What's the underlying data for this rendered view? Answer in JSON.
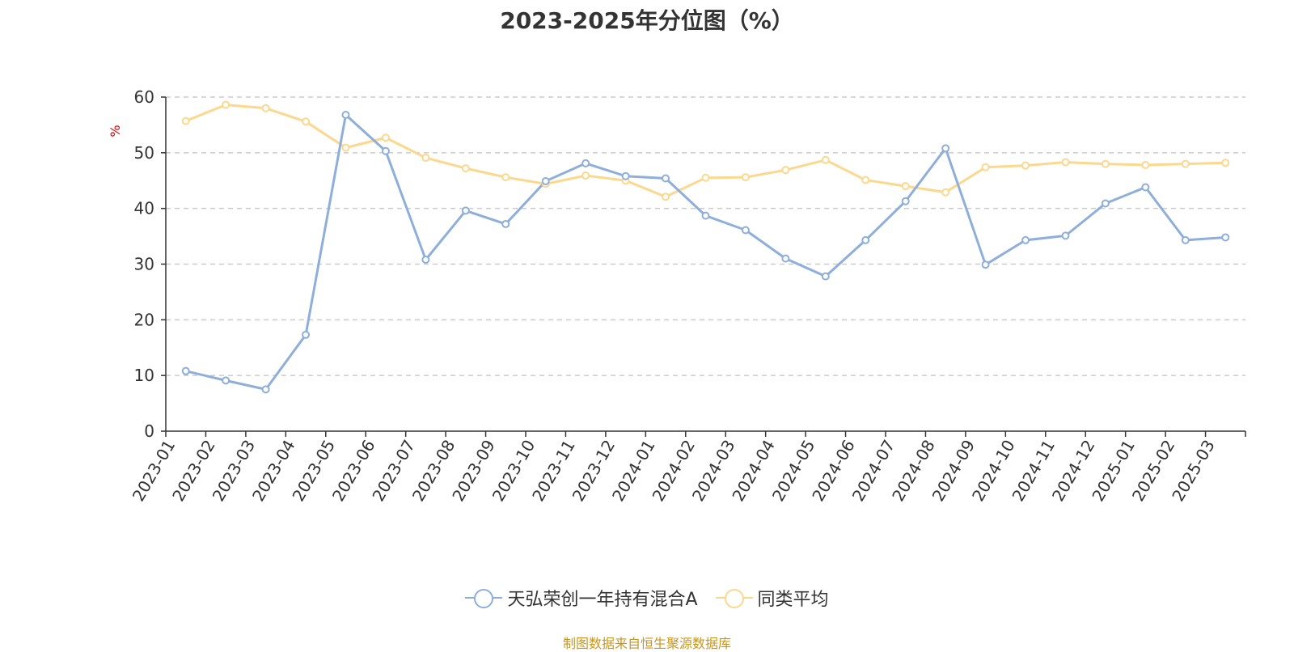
{
  "chart_data": {
    "type": "line",
    "title": "2023-2025年分位图（%）",
    "ylabel": "%",
    "ylim": [
      0,
      60
    ],
    "yticks": [
      0,
      10,
      20,
      30,
      40,
      50,
      60
    ],
    "grid": true,
    "legend_position": "bottom",
    "categories": [
      "2023-01",
      "2023-02",
      "2023-03",
      "2023-04",
      "2023-05",
      "2023-06",
      "2023-07",
      "2023-08",
      "2023-09",
      "2023-10",
      "2023-11",
      "2023-12",
      "2024-01",
      "2024-02",
      "2024-03",
      "2024-04",
      "2024-05",
      "2024-06",
      "2024-07",
      "2024-08",
      "2024-09",
      "2024-10",
      "2024-11",
      "2024-12",
      "2025-01",
      "2025-02",
      "2025-03"
    ],
    "series": [
      {
        "name": "天弘荣创一年持有混合A",
        "color": "#8eaedb",
        "values": [
          10.8,
          9.1,
          7.5,
          17.3,
          56.8,
          50.3,
          30.8,
          39.6,
          37.2,
          44.9,
          48.1,
          45.8,
          45.4,
          38.7,
          36.1,
          31.0,
          27.8,
          34.3,
          41.3,
          50.8,
          29.9,
          34.3,
          35.1,
          40.9,
          43.8,
          34.3,
          34.8
        ]
      },
      {
        "name": "同类平均",
        "color": "#fcd88e",
        "values": [
          55.7,
          58.6,
          58.0,
          55.6,
          50.9,
          52.7,
          49.1,
          47.2,
          45.6,
          44.4,
          45.9,
          45.0,
          42.1,
          45.5,
          45.6,
          46.9,
          48.7,
          45.1,
          44.0,
          42.9,
          47.4,
          47.7,
          48.3,
          48.0,
          47.8,
          48.0,
          48.2
        ]
      }
    ]
  },
  "source_note": "制图数据来自恒生聚源数据库"
}
